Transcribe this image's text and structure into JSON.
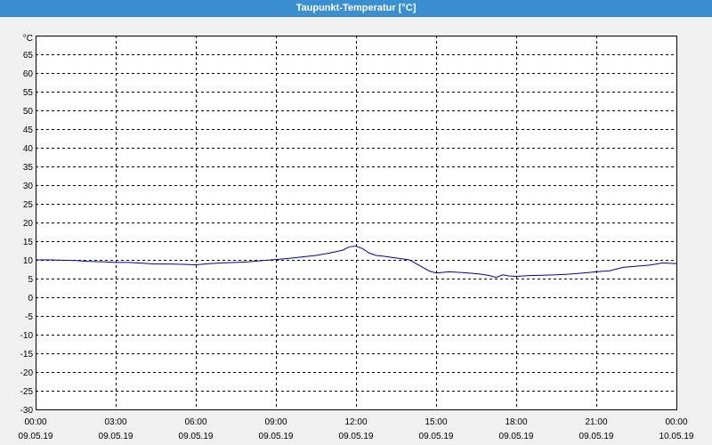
{
  "title": "Taupunkt-Temperatur [°C]",
  "chart_data": {
    "type": "line",
    "title": "Taupunkt-Temperatur [°C]",
    "ylabel": "°C",
    "xlabel": "",
    "ylim": [
      -30,
      70
    ],
    "yticks": [
      65,
      60,
      55,
      50,
      45,
      40,
      35,
      30,
      25,
      20,
      15,
      10,
      5,
      0,
      -5,
      -10,
      -15,
      -20,
      -25,
      -30
    ],
    "xlim_hours": [
      0,
      24
    ],
    "xticks": [
      {
        "time": "00:00",
        "date": "09.05.19"
      },
      {
        "time": "03:00",
        "date": "09.05.19"
      },
      {
        "time": "06:00",
        "date": "09.05.19"
      },
      {
        "time": "09:00",
        "date": "09.05.19"
      },
      {
        "time": "12:00",
        "date": "09.05.19"
      },
      {
        "time": "15:00",
        "date": "09.05.19"
      },
      {
        "time": "18:00",
        "date": "09.05.19"
      },
      {
        "time": "21:00",
        "date": "09.05.19"
      },
      {
        "time": "00:00",
        "date": "10.05.19"
      }
    ],
    "grid": true,
    "line_color": "#0000a0",
    "series": [
      {
        "x": [
          0,
          0.5,
          1,
          1.5,
          2,
          2.5,
          3,
          3.5,
          4,
          4.5,
          5,
          5.5,
          6,
          6.5,
          7,
          7.5,
          8,
          8.5,
          9,
          9.5,
          10,
          10.5,
          11,
          11.25,
          11.5,
          11.75,
          12,
          12.25,
          12.5,
          12.75,
          13,
          13.5,
          14,
          14.25,
          14.5,
          14.75,
          15,
          15.5,
          16,
          16.5,
          16.75,
          17,
          17.25,
          17.5,
          17.75,
          18,
          18.5,
          19,
          19.5,
          20,
          20.5,
          21,
          21.5,
          22,
          22.5,
          23,
          23.5,
          24
        ],
        "values": [
          10.0,
          10.0,
          9.9,
          9.8,
          9.6,
          9.5,
          9.3,
          9.3,
          9.1,
          8.9,
          8.9,
          8.8,
          8.7,
          9.0,
          9.2,
          9.3,
          9.5,
          9.8,
          10.1,
          10.4,
          10.8,
          11.2,
          11.8,
          12.2,
          12.6,
          13.5,
          13.7,
          13.0,
          11.8,
          11.2,
          11.0,
          10.5,
          10.0,
          9.0,
          8.0,
          7.0,
          6.5,
          6.8,
          6.6,
          6.3,
          6.1,
          5.8,
          5.3,
          6.0,
          5.7,
          5.6,
          5.8,
          5.9,
          6.0,
          6.2,
          6.5,
          6.8,
          7.1,
          8.0,
          8.3,
          8.6,
          9.2,
          9.0
        ]
      }
    ]
  }
}
